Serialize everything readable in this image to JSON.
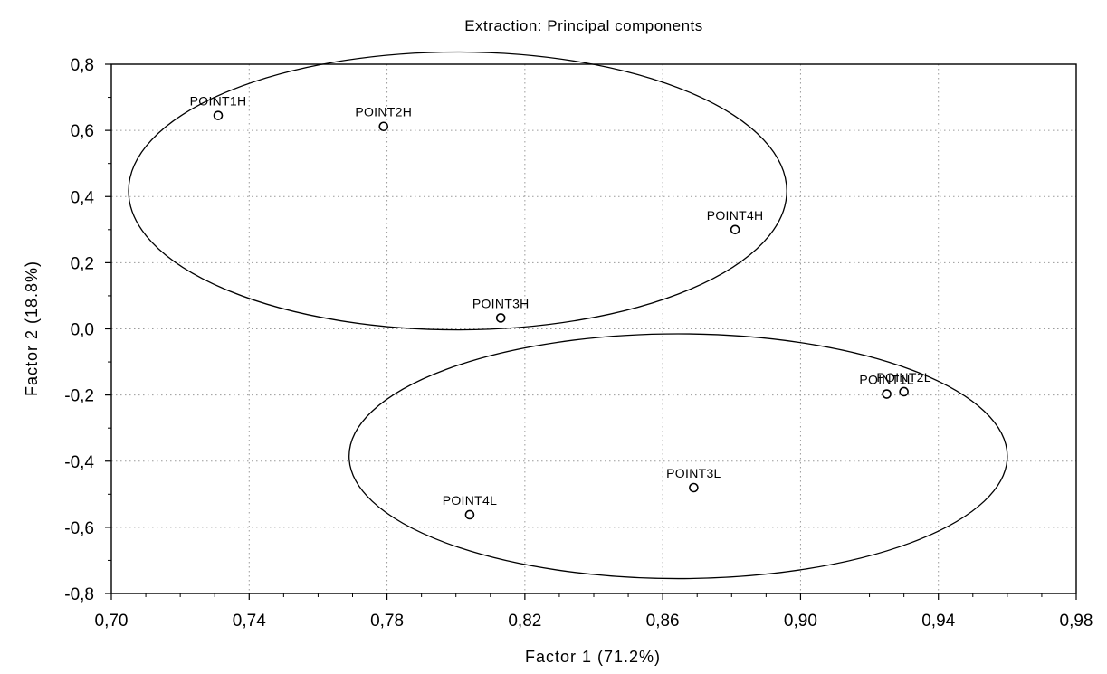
{
  "chart_data": {
    "type": "scatter",
    "title": "Extraction: Principal components",
    "xlabel": "Factor 1 (71.2%)",
    "ylabel": "Factor 2 (18.8%)",
    "xlim": [
      0.7,
      0.98
    ],
    "ylim": [
      -0.8,
      0.8
    ],
    "x_ticks": [
      0.7,
      0.74,
      0.78,
      0.82,
      0.86,
      0.9,
      0.94,
      0.98
    ],
    "y_ticks": [
      0.8,
      0.6,
      0.4,
      0.2,
      0.0,
      -0.2,
      -0.4,
      -0.6,
      -0.8
    ],
    "x_tick_labels": [
      "0,70",
      "0,74",
      "0,78",
      "0,82",
      "0,86",
      "0,90",
      "0,94",
      "0,98"
    ],
    "y_tick_labels": [
      "0,8",
      "0,6",
      "0,4",
      "0,2",
      "0,0",
      "-0,2",
      "-0,4",
      "-0,6",
      "-0,8"
    ],
    "grid": true,
    "points": [
      {
        "label": "POINT1H",
        "x": 0.731,
        "y": 0.645
      },
      {
        "label": "POINT2H",
        "x": 0.779,
        "y": 0.612
      },
      {
        "label": "POINT4H",
        "x": 0.881,
        "y": 0.3
      },
      {
        "label": "POINT3H",
        "x": 0.813,
        "y": 0.033
      },
      {
        "label": "POINT1L",
        "x": 0.925,
        "y": -0.197
      },
      {
        "label": "POINT2L",
        "x": 0.93,
        "y": -0.19
      },
      {
        "label": "POINT3L",
        "x": 0.869,
        "y": -0.48
      },
      {
        "label": "POINT4L",
        "x": 0.804,
        "y": -0.562
      }
    ],
    "ellipses": [
      {
        "cx": 0.8005,
        "cy": 0.417,
        "rx": 0.0955,
        "ry": 0.42
      },
      {
        "cx": 0.8645,
        "cy": -0.385,
        "rx": 0.0955,
        "ry": 0.37
      }
    ]
  }
}
